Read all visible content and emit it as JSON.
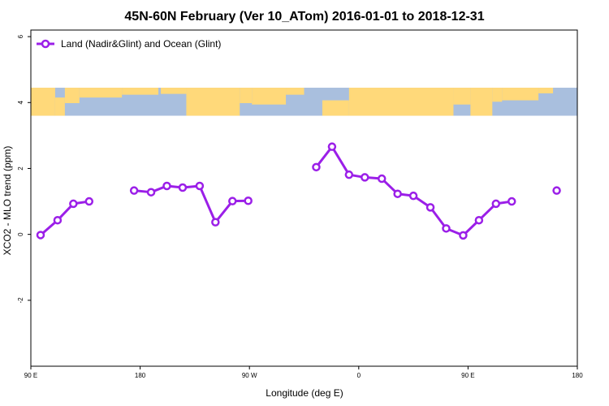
{
  "chart_data": {
    "type": "line",
    "title": "45N-60N February (Ver 10_ATom)   2016-01-01 to 2018-12-31",
    "xlabel": "Longitude (deg E)",
    "ylabel": "XCO2 - MLO trend (ppm)",
    "xlim": [
      90,
      540
    ],
    "ylim": [
      -4,
      6.2
    ],
    "x_ticks": [
      {
        "value": 90,
        "label": "90 E"
      },
      {
        "value": 180,
        "label": "180"
      },
      {
        "value": 270,
        "label": "90 W"
      },
      {
        "value": 360,
        "label": "0"
      },
      {
        "value": 450,
        "label": "90 E"
      },
      {
        "value": 540,
        "label": "180"
      }
    ],
    "y_ticks": [
      {
        "value": -2,
        "label": "-2"
      },
      {
        "value": 0,
        "label": "0"
      },
      {
        "value": 2,
        "label": "2"
      },
      {
        "value": 4,
        "label": "4"
      },
      {
        "value": 6,
        "label": "6"
      }
    ],
    "legend_position": "top-left",
    "map_band": {
      "y_from": 3.6,
      "y_to": 4.45,
      "land_color": "#FFD97A",
      "ocean_color": "#A9BFDE"
    },
    "series": [
      {
        "name": "Land (Nadir&Glint) and Ocean (Glint)",
        "color": "#9B1FE8",
        "segments": [
          [
            [
              98,
              -0.02
            ],
            [
              112,
              0.43
            ],
            [
              125,
              0.93
            ],
            [
              138,
              1.0
            ]
          ],
          [
            [
              175,
              1.33
            ],
            [
              189,
              1.28
            ],
            [
              202,
              1.47
            ],
            [
              215,
              1.42
            ],
            [
              229,
              1.47
            ],
            [
              242,
              0.37
            ],
            [
              256,
              1.01
            ],
            [
              269,
              1.02
            ]
          ],
          [
            [
              325,
              2.04
            ],
            [
              338,
              2.66
            ],
            [
              352,
              1.81
            ],
            [
              365,
              1.73
            ],
            [
              379,
              1.69
            ],
            [
              392,
              1.23
            ],
            [
              405,
              1.17
            ],
            [
              419,
              0.82
            ],
            [
              432,
              0.18
            ],
            [
              446,
              -0.03
            ],
            [
              459,
              0.43
            ],
            [
              473,
              0.93
            ],
            [
              486,
              1.0
            ]
          ],
          [
            [
              523,
              1.33
            ]
          ]
        ]
      }
    ]
  }
}
